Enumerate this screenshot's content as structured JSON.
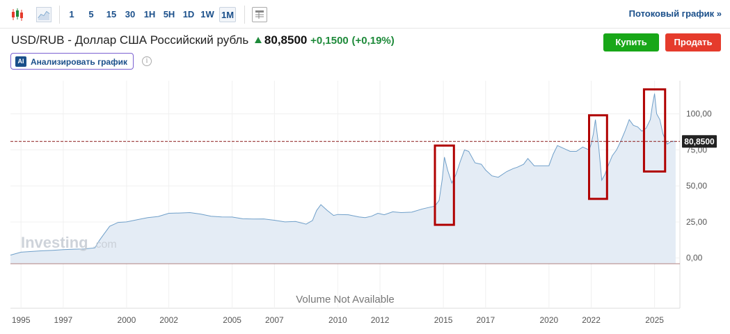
{
  "toolbar": {
    "icons": [
      "candlestick-icon",
      "area-chart-icon",
      "table-icon"
    ],
    "timeframes": [
      "1",
      "5",
      "15",
      "30",
      "1H",
      "5H",
      "1D",
      "1W",
      "1M"
    ],
    "active_timeframe": "1M",
    "stream_link": "Потоковый график",
    "stream_arrow": "»"
  },
  "header": {
    "title": "USD/RUB - Доллар США Российский рубль",
    "price": "80,8500",
    "change": "+0,1500",
    "change_pct": "(+0,19%)"
  },
  "actions": {
    "buy": "Купить",
    "sell": "Продать"
  },
  "analyze": {
    "badge": "AI",
    "label": "Анализировать график",
    "info": "i"
  },
  "colors": {
    "line": "#6f9fc9",
    "fill": "#e4ecf5",
    "price_line": "#8b1a1a",
    "highlight": "#b00000",
    "buy": "#18a718",
    "sell": "#e53b2c"
  },
  "chart_data": {
    "type": "area",
    "x_unit": "year",
    "xlim": [
      1994.5,
      2026.2
    ],
    "ylim": [
      -4,
      123
    ],
    "y_ticks": [
      0,
      25,
      50,
      75,
      100
    ],
    "y_tick_labels": [
      "0,00",
      "25,00",
      "50,00",
      "75,00",
      "100,00"
    ],
    "x_ticks": [
      1995,
      1997,
      2000,
      2002,
      2005,
      2007,
      2010,
      2012,
      2015,
      2017,
      2020,
      2022,
      2025
    ],
    "x_tick_labels": [
      "1995",
      "1997",
      "2000",
      "2002",
      "2005",
      "2007",
      "2010",
      "2012",
      "2015",
      "2017",
      "2020",
      "2022",
      "2025"
    ],
    "current_value": 80.85,
    "current_label": "80,8500",
    "volume_text": "Volume Not Available",
    "watermark": "Investing",
    "watermark_suffix": ".com",
    "grid": true,
    "series": [
      {
        "x": [
          1994.5,
          1995.0,
          1995.5,
          1996.0,
          1996.5,
          1997.0,
          1997.5,
          1998.0,
          1998.5,
          1998.7,
          1998.9,
          1999.2,
          1999.6,
          2000.0,
          2000.5,
          2001.0,
          2001.5,
          2002.0,
          2002.5,
          2003.0,
          2003.5,
          2004.0,
          2004.5,
          2005.0,
          2005.5,
          2006.0,
          2006.5,
          2007.0,
          2007.5,
          2008.0,
          2008.5,
          2008.8,
          2009.0,
          2009.2,
          2009.5,
          2009.8,
          2010.0,
          2010.5,
          2011.0,
          2011.3,
          2011.6,
          2011.9,
          2012.2,
          2012.6,
          2013.0,
          2013.5,
          2014.0,
          2014.3,
          2014.6,
          2014.8,
          2014.95,
          2015.05,
          2015.2,
          2015.4,
          2015.6,
          2015.8,
          2016.0,
          2016.2,
          2016.5,
          2016.8,
          2017.0,
          2017.3,
          2017.6,
          2018.0,
          2018.3,
          2018.5,
          2018.8,
          2019.0,
          2019.3,
          2019.6,
          2020.0,
          2020.2,
          2020.4,
          2020.7,
          2021.0,
          2021.3,
          2021.6,
          2021.9,
          2022.0,
          2022.1,
          2022.2,
          2022.35,
          2022.5,
          2022.65,
          2022.8,
          2023.0,
          2023.2,
          2023.4,
          2023.6,
          2023.8,
          2024.0,
          2024.2,
          2024.4,
          2024.6,
          2024.8,
          2024.9,
          2025.0,
          2025.1,
          2025.25,
          2025.4,
          2025.6,
          2025.8,
          2026.0
        ],
        "y": [
          2,
          4,
          4.5,
          5,
          5.3,
          5.8,
          6.1,
          6.3,
          7,
          12,
          16,
          22,
          24.7,
          25,
          26.5,
          28,
          28.8,
          31,
          31.2,
          31.5,
          30.5,
          29,
          28.5,
          28.4,
          27.2,
          27,
          27.1,
          26.2,
          25,
          25.3,
          23.5,
          26,
          33,
          37,
          33,
          29.5,
          30.2,
          30,
          28.5,
          28,
          29,
          31,
          30,
          32,
          31.5,
          31.8,
          34,
          35,
          36,
          40,
          55,
          70,
          61,
          52,
          58,
          67,
          75,
          74,
          66,
          65,
          61,
          57,
          56,
          60,
          62,
          63,
          65,
          69,
          64,
          64,
          64,
          72,
          78,
          76,
          74,
          74,
          77,
          75,
          79,
          86,
          96,
          78,
          54,
          58,
          64,
          71,
          75,
          81,
          88,
          96,
          92,
          91,
          88,
          90,
          96,
          106,
          114,
          100,
          96,
          86,
          79,
          81,
          80.85
        ]
      }
    ],
    "highlights": [
      {
        "from": 2014.6,
        "to": 2015.5,
        "ymin": 23,
        "ymax": 78
      },
      {
        "from": 2021.9,
        "to": 2022.75,
        "ymin": 41,
        "ymax": 99
      },
      {
        "from": 2024.5,
        "to": 2025.5,
        "ymin": 60,
        "ymax": 117
      }
    ]
  }
}
